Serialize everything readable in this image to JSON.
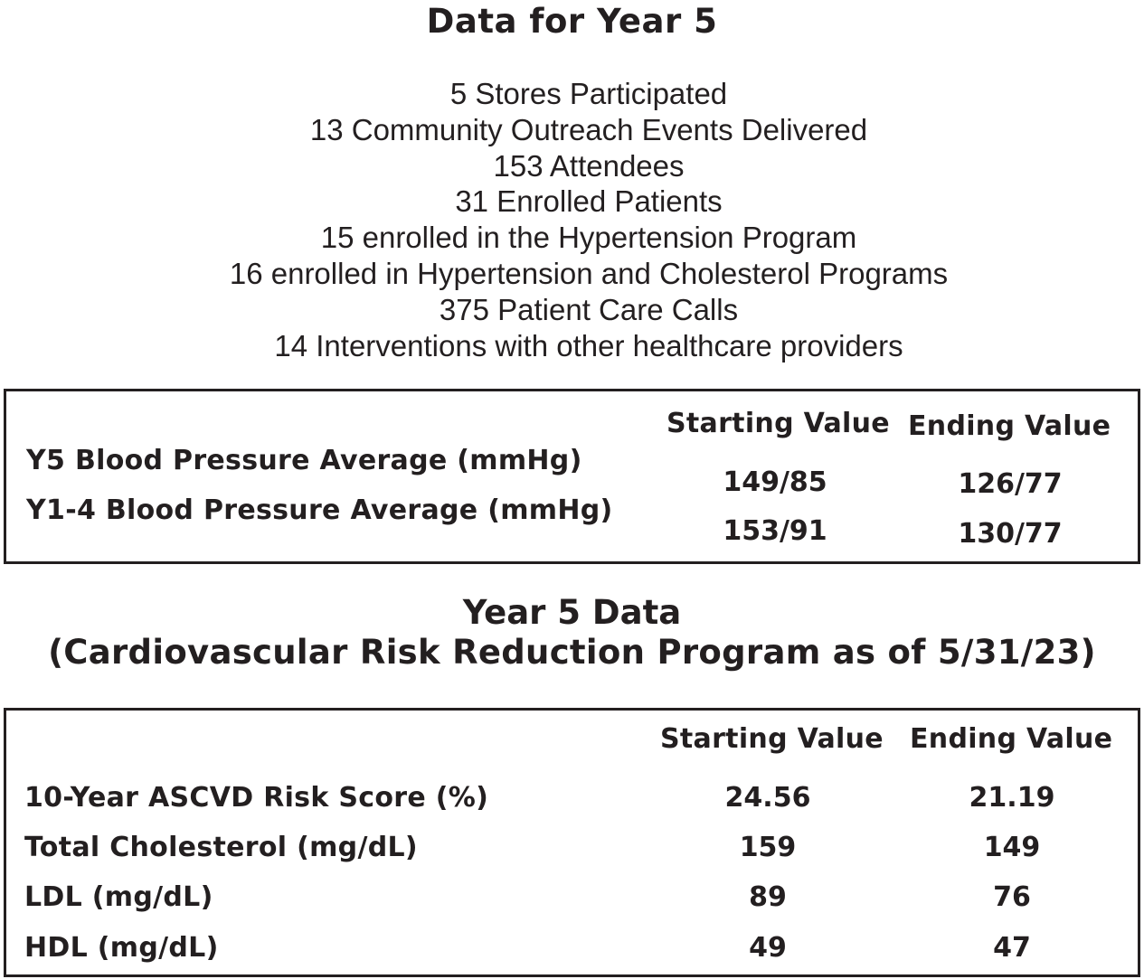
{
  "year5_summary": {
    "title": "Data for Year 5",
    "stats": [
      "5 Stores Participated",
      "13 Community Outreach Events Delivered",
      "153 Attendees",
      "31 Enrolled Patients",
      "15 enrolled in the Hypertension Program",
      "16 enrolled in Hypertension and Cholesterol Programs",
      "375 Patient Care Calls",
      "14 Interventions with other healthcare providers"
    ]
  },
  "bp_table": {
    "col_start": "Starting Value",
    "col_end": "Ending Value",
    "rows": [
      {
        "label": "Y5 Blood Pressure Average (mmHg)",
        "start": "149/85",
        "end": "126/77"
      },
      {
        "label": "Y1-4 Blood Pressure Average (mmHg)",
        "start": "153/91",
        "end": "130/77"
      }
    ]
  },
  "risk_section": {
    "title_line1": "Year 5 Data",
    "title_line2": "(Cardiovascular Risk Reduction Program as of 5/31/23)"
  },
  "risk_table": {
    "col_start": "Starting Value",
    "col_end": "Ending Value",
    "rows": [
      {
        "label": "10-Year ASCVD Risk Score (%)",
        "start": "24.56",
        "end": "21.19"
      },
      {
        "label": "Total Cholesterol (mg/dL)",
        "start": "159",
        "end": "149"
      },
      {
        "label": "LDL (mg/dL)",
        "start": "89",
        "end": "76"
      },
      {
        "label": "HDL (mg/dL)",
        "start": "49",
        "end": "47"
      }
    ]
  }
}
